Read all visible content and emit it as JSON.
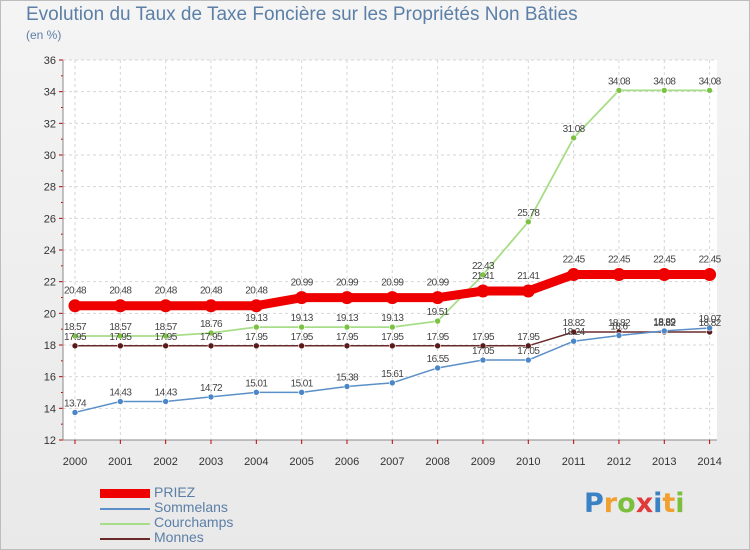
{
  "title": "Evolution du Taux de Taxe Foncière sur les Propriétés Non Bâties",
  "subtitle": "(en %)",
  "logo": {
    "letters": [
      "P",
      "r",
      "o",
      "x",
      "i",
      "t",
      "i"
    ],
    "colors": [
      "#3b82c4",
      "#f0a030",
      "#7cbf3c",
      "#e03a3a",
      "#3b82c4",
      "#f0a030",
      "#7cbf3c"
    ]
  },
  "chart_data": {
    "type": "line",
    "title": "Evolution du Taux de Taxe Foncière sur les Propriétés Non Bâties",
    "ylabel": "(en %)",
    "xlabel": "",
    "ylim": [
      12,
      36
    ],
    "yticks": [
      12,
      14,
      16,
      18,
      20,
      22,
      24,
      26,
      28,
      30,
      32,
      34,
      36
    ],
    "grid": true,
    "legend_position": "bottom-left",
    "x": [
      "2000",
      "2001",
      "2002",
      "2003",
      "2004",
      "2005",
      "2006",
      "2007",
      "2008",
      "2009",
      "2010",
      "2011",
      "2012",
      "2013",
      "2014"
    ],
    "series": [
      {
        "name": "Monnes",
        "color": "#6b2a2a",
        "marker": "#5a1a1a",
        "values": [
          17.95,
          17.95,
          17.95,
          17.95,
          17.95,
          17.95,
          17.95,
          17.95,
          17.95,
          17.95,
          17.95,
          18.82,
          18.82,
          18.82,
          18.82
        ],
        "labels": [
          "17.95",
          "17.95",
          "17.95",
          "17.95",
          "17.95",
          "17.95",
          "17.95",
          "17.95",
          "17.95",
          "17.95",
          "17.95",
          "18.82",
          "18.82",
          "18.82",
          "18.82"
        ]
      },
      {
        "name": "Sommelans",
        "color": "#5b8fc7",
        "marker": "#4a86c8",
        "values": [
          13.74,
          14.43,
          14.43,
          14.72,
          15.01,
          15.01,
          15.38,
          15.61,
          16.55,
          17.05,
          17.05,
          18.24,
          18.6,
          18.89,
          19.07
        ],
        "labels": [
          "13.74",
          "14.43",
          "14.43",
          "14.72",
          "15.01",
          "15.01",
          "15.38",
          "15.61",
          "16.55",
          "17.05",
          "17.05",
          "18.24",
          "18.6",
          "18.89",
          "19.07"
        ]
      },
      {
        "name": "Courchamps",
        "color": "#a8dd88",
        "marker": "#7cc242",
        "values": [
          18.57,
          18.57,
          18.57,
          18.76,
          19.13,
          19.13,
          19.13,
          19.13,
          19.51,
          22.43,
          25.78,
          31.08,
          34.08,
          34.08,
          34.08
        ],
        "labels": [
          "18.57",
          "18.57",
          "18.57",
          "18.76",
          "19.13",
          "19.13",
          "19.13",
          "19.13",
          "19.51",
          "22.43",
          "25.78",
          "31.08",
          "34.08",
          "34.08",
          "34.08"
        ]
      },
      {
        "name": "PRIEZ",
        "color": "#ee0000",
        "marker": "#ee0000",
        "values": [
          20.48,
          20.48,
          20.48,
          20.48,
          20.48,
          20.99,
          20.99,
          20.99,
          20.99,
          21.41,
          21.41,
          22.45,
          22.45,
          22.45,
          22.45
        ],
        "labels": [
          "20.48",
          "20.48",
          "20.48",
          "20.48",
          "20.48",
          "20.99",
          "20.99",
          "20.99",
          "20.99",
          "21.41",
          "21.41",
          "22.45",
          "22.45",
          "22.45",
          "22.45"
        ]
      }
    ],
    "legend": [
      "PRIEZ",
      "Sommelans",
      "Courchamps",
      "Monnes"
    ]
  }
}
